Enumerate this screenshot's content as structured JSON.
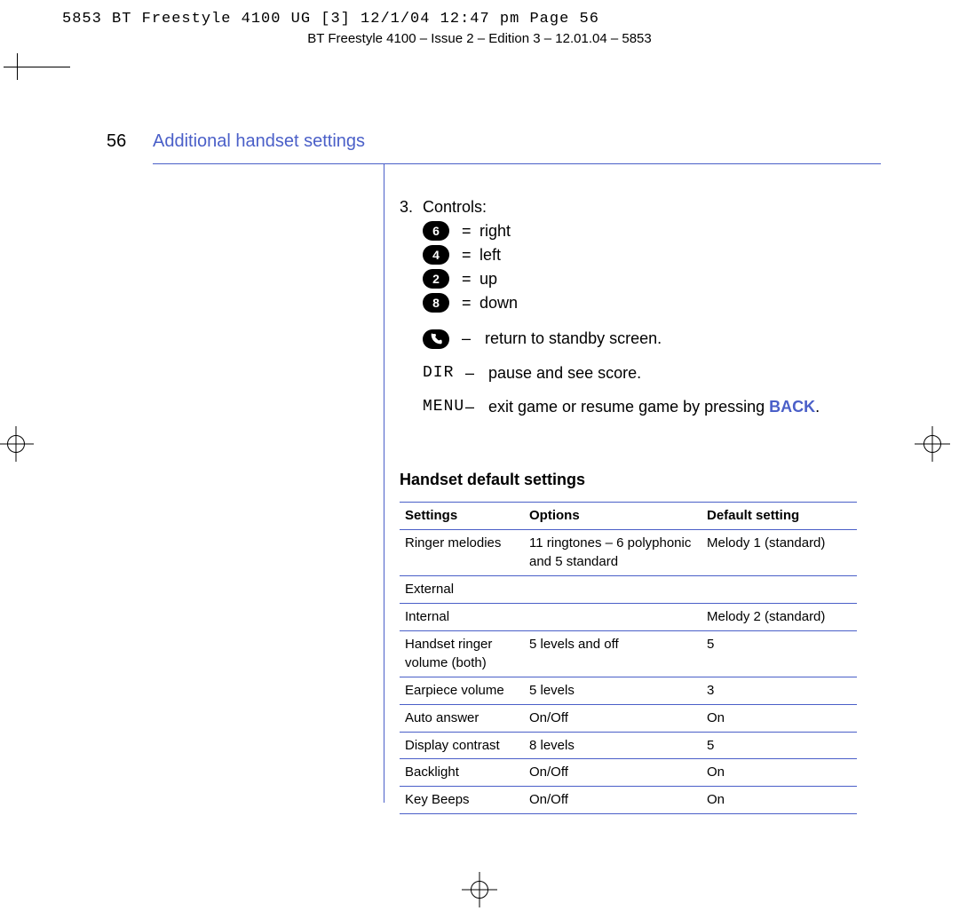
{
  "print_header_mono": "5853 BT Freestyle 4100 UG [3]  12/1/04  12:47 pm  Page 56",
  "print_header_serif": "BT Freestyle 4100 – Issue 2 – Edition 3 – 12.01.04 – 5853",
  "page_number": "56",
  "section_title": "Additional handset settings",
  "controls": {
    "number": "3.",
    "label": "Controls:",
    "keys": [
      {
        "cap": "6",
        "text": "right"
      },
      {
        "cap": "4",
        "text": "left"
      },
      {
        "cap": "2",
        "text": "up"
      },
      {
        "cap": "8",
        "text": "down"
      }
    ],
    "phone_text": "return to standby screen.",
    "dir_label": "DIR",
    "dir_text": "pause and see score.",
    "menu_label": "MENU",
    "menu_text_pre": "exit game or resume game by pressing ",
    "menu_text_bold": "BACK",
    "menu_text_post": "."
  },
  "subheading": "Handset default settings",
  "table": {
    "headers": [
      "Settings",
      "Options",
      "Default setting"
    ],
    "rows": [
      [
        "Ringer melodies",
        "11 ringtones – 6 polyphonic and 5 standard",
        "Melody 1 (standard)"
      ],
      [
        "External",
        "",
        ""
      ],
      [
        "Internal",
        "",
        "Melody 2 (standard)"
      ],
      [
        "Handset ringer volume (both)",
        "5 levels and off",
        "5"
      ],
      [
        "Earpiece volume",
        "5 levels",
        "3"
      ],
      [
        "Auto answer",
        "On/Off",
        "On"
      ],
      [
        "Display contrast",
        "8 levels",
        "5"
      ],
      [
        "Backlight",
        "On/Off",
        "On"
      ],
      [
        "Key Beeps",
        "On/Off",
        "On"
      ]
    ]
  },
  "colors": {
    "accent": "#4a5fc8",
    "text": "#000000",
    "bg": "#ffffff"
  }
}
